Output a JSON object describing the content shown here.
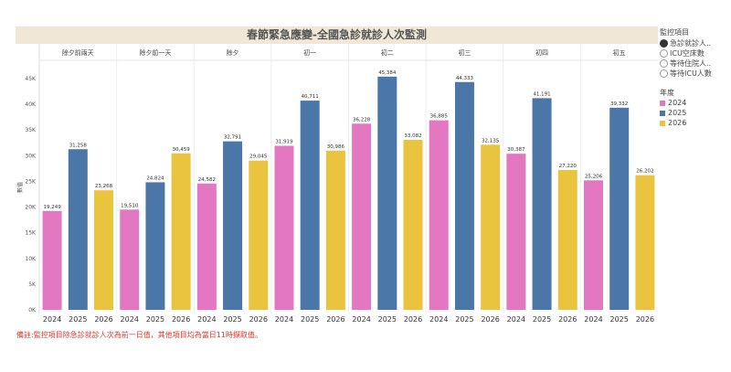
{
  "chart_data": {
    "type": "bar",
    "title": "春節緊急應變-全國急診就診人次監測",
    "ylabel": "數值",
    "ylim": [
      0,
      47000
    ],
    "yticks": [
      "0K",
      "5K",
      "10K",
      "15K",
      "20K",
      "25K",
      "30K",
      "35K",
      "40K",
      "45K"
    ],
    "grid": true,
    "categories": [
      "除夕前兩天",
      "除夕前一天",
      "除夕",
      "初一",
      "初二",
      "初三",
      "初四",
      "初五"
    ],
    "years": [
      "2024",
      "2025",
      "2026"
    ],
    "series": [
      {
        "name": "2024",
        "color": "#e377c2",
        "values": [
          19249,
          19510,
          24582,
          31919,
          36228,
          36885,
          30387,
          25206
        ],
        "labels": [
          "19,249",
          "19,510",
          "24,582",
          "31,919",
          "36,228",
          "36,885",
          "30,387",
          "25,206"
        ]
      },
      {
        "name": "2025",
        "color": "#4a76a8",
        "values": [
          31258,
          24824,
          32791,
          40711,
          45384,
          44333,
          41191,
          39332
        ],
        "labels": [
          "31,258",
          "24,824",
          "32,791",
          "40,711",
          "45,384",
          "44,333",
          "41,191",
          "39,332"
        ]
      },
      {
        "name": "2026",
        "color": "#ebc43f",
        "values": [
          23268,
          30459,
          29045,
          30986,
          33082,
          32135,
          27220,
          26202
        ],
        "labels": [
          "23,268",
          "30,459",
          "29,045",
          "30,986",
          "33,082",
          "32,135",
          "27,220",
          "26,202"
        ]
      }
    ]
  },
  "legend": {
    "filter_title": "監控項目",
    "filter_options": [
      "急診就診人..",
      "ICU空床數",
      "等待住院人..",
      "等待ICU人數"
    ],
    "selected_index": 0,
    "year_title": "年度"
  },
  "note": "備註:監控項目除急診就診人次為前一日值，其他項目均為當日11時擷取值。"
}
